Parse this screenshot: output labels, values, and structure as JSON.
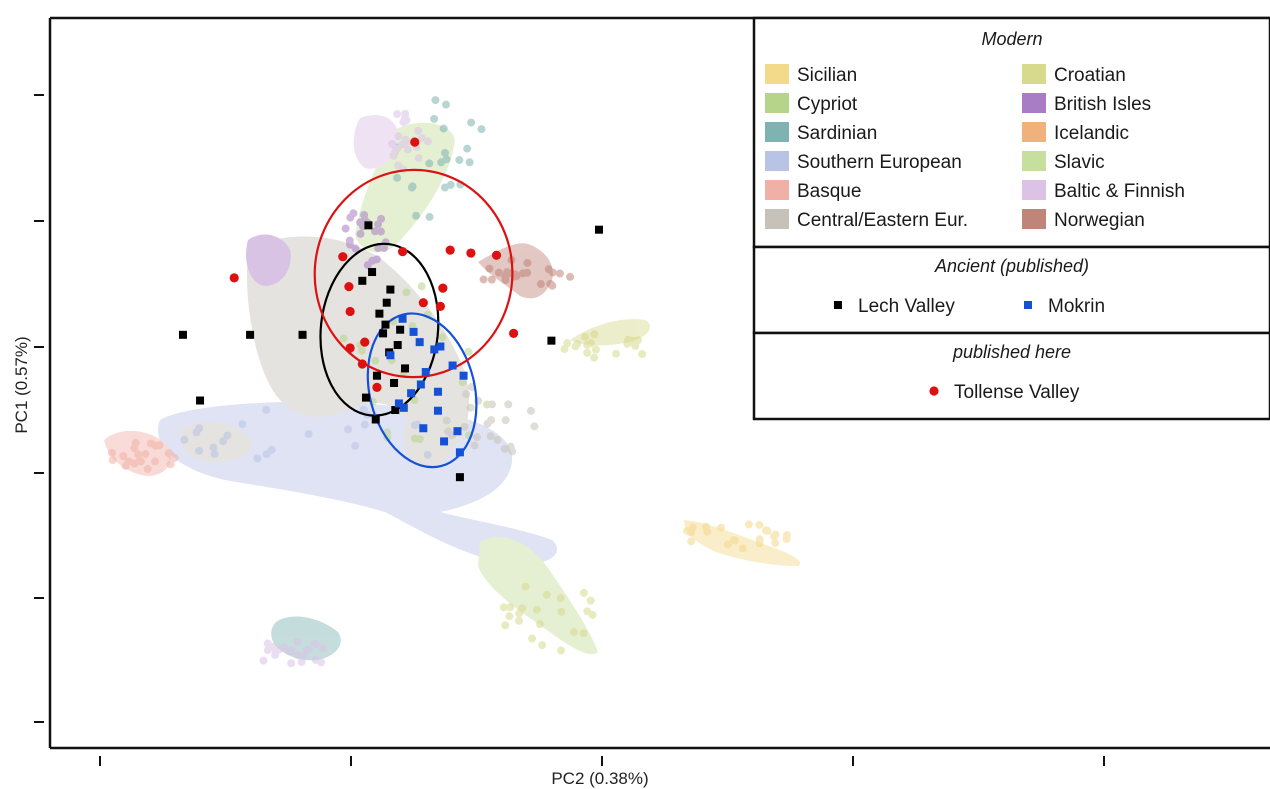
{
  "chart_data": {
    "type": "scatter",
    "xlabel": "PC2 (0.38%)",
    "ylabel": "PC1 (0.57%)",
    "xlim": [
      0,
      1
    ],
    "ylim": [
      0,
      1
    ],
    "grid": false,
    "legend_position": "top-right",
    "legend": {
      "modern_title": "Modern",
      "modern": [
        {
          "label": "Sicilian",
          "color": "#f3d98a"
        },
        {
          "label": "Croatian",
          "color": "#d7d98c"
        },
        {
          "label": "Cypriot",
          "color": "#b7d58a"
        },
        {
          "label": "British Isles",
          "color": "#a97cc6"
        },
        {
          "label": "Sardinian",
          "color": "#7fb3b2"
        },
        {
          "label": "Icelandic",
          "color": "#f0b27a"
        },
        {
          "label": "Southern European",
          "color": "#b9c3e6"
        },
        {
          "label": "Slavic",
          "color": "#c6de9e"
        },
        {
          "label": "Basque",
          "color": "#f1b0a6"
        },
        {
          "label": "Baltic & Finnish",
          "color": "#dcc3e6"
        },
        {
          "label": "Central/Eastern Eur.",
          "color": "#c7c2b9"
        },
        {
          "label": "Norwegian",
          "color": "#c08579"
        }
      ],
      "ancient_title": "Ancient (published)",
      "ancient": [
        {
          "label": "Lech Valley",
          "color": "#000000",
          "marker": "square"
        },
        {
          "label": "Mokrin",
          "color": "#1450d8",
          "marker": "square"
        }
      ],
      "here_title": "published here",
      "here": [
        {
          "label": "Tollense Valley",
          "color": "#dd1111",
          "marker": "circle"
        }
      ]
    },
    "series": [
      {
        "name": "Lech Valley",
        "color": "#000000",
        "marker": "square",
        "x": [
          0.261,
          0.264,
          0.279,
          0.27,
          0.275,
          0.276,
          0.273,
          0.285,
          0.278,
          0.268,
          0.282,
          0.291,
          0.259,
          0.267,
          0.283,
          0.109,
          0.164,
          0.207,
          0.256,
          0.123,
          0.287,
          0.45,
          0.411,
          0.336
        ],
        "y": [
          0.716,
          0.652,
          0.628,
          0.595,
          0.58,
          0.61,
          0.568,
          0.552,
          0.542,
          0.51,
          0.5,
          0.52,
          0.48,
          0.45,
          0.463,
          0.566,
          0.566,
          0.566,
          0.64,
          0.476,
          0.573,
          0.71,
          0.558,
          0.371
        ],
        "ellipse": {
          "cx": 0.27,
          "cy": 0.573,
          "rx": 0.048,
          "ry": 0.118,
          "rotation_deg": 6
        }
      },
      {
        "name": "Mokrin",
        "color": "#1450d8",
        "marker": "square",
        "x": [
          0.289,
          0.298,
          0.303,
          0.315,
          0.32,
          0.33,
          0.339,
          0.308,
          0.318,
          0.304,
          0.296,
          0.286,
          0.318,
          0.334,
          0.306,
          0.29,
          0.279,
          0.323,
          0.336
        ],
        "y": [
          0.588,
          0.57,
          0.556,
          0.546,
          0.55,
          0.524,
          0.51,
          0.515,
          0.488,
          0.498,
          0.486,
          0.472,
          0.462,
          0.434,
          0.438,
          0.466,
          0.538,
          0.42,
          0.405
        ],
        "ellipse": {
          "cx": 0.305,
          "cy": 0.49,
          "rx": 0.043,
          "ry": 0.107,
          "rotation_deg": -14
        }
      },
      {
        "name": "Tollense Valley",
        "color": "#dd1111",
        "marker": "circle",
        "x": [
          0.299,
          0.289,
          0.24,
          0.245,
          0.328,
          0.322,
          0.345,
          0.366,
          0.151,
          0.246,
          0.306,
          0.32,
          0.38,
          0.246,
          0.268,
          0.258,
          0.256
        ],
        "y": [
          0.83,
          0.68,
          0.673,
          0.632,
          0.682,
          0.63,
          0.678,
          0.675,
          0.644,
          0.598,
          0.61,
          0.605,
          0.568,
          0.548,
          0.494,
          0.556,
          0.526
        ],
        "ellipse": {
          "cx": 0.298,
          "cy": 0.65,
          "rx": 0.081,
          "ry": 0.142,
          "rotation_deg": 4
        }
      }
    ]
  }
}
